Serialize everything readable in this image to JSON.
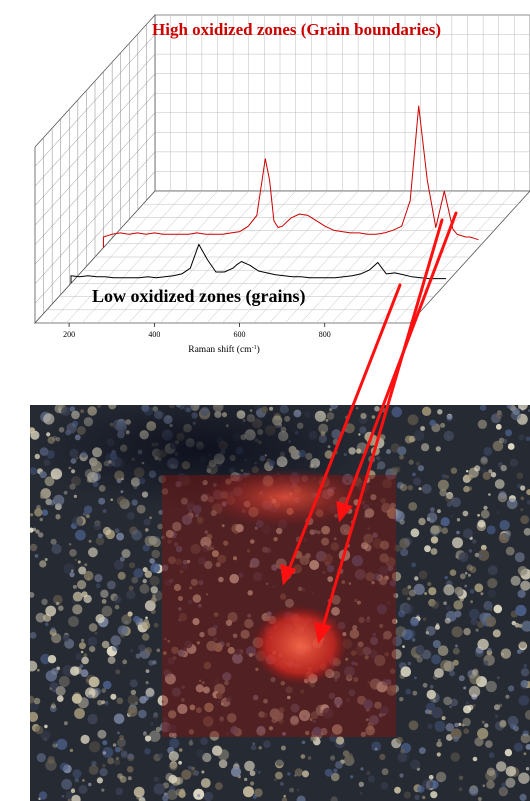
{
  "chart_data": {
    "type": "line",
    "view": "3d-waterfall",
    "xlabel": "Raman shift (cm",
    "xlabel_superscript": "-1",
    "xlabel_suffix": ")",
    "x_ticks": [
      "200",
      "400",
      "600",
      "800"
    ],
    "xlim": [
      120,
      1000
    ],
    "grid": true,
    "series": [
      {
        "name": "High oxidized zones (Grain boundaries)",
        "color": "#cc0000",
        "x": [
          120,
          140,
          160,
          180,
          200,
          220,
          240,
          260,
          280,
          300,
          320,
          340,
          360,
          380,
          400,
          420,
          440,
          460,
          480,
          500,
          510,
          520,
          530,
          540,
          550,
          560,
          580,
          600,
          620,
          640,
          660,
          680,
          700,
          720,
          740,
          760,
          780,
          800,
          820,
          840,
          860,
          880,
          900,
          920,
          940,
          950,
          960,
          970,
          980,
          990,
          1000
        ],
        "y": [
          0.8,
          1.0,
          1.1,
          1.0,
          1.1,
          1.0,
          1.1,
          1.0,
          1.0,
          1.0,
          1.0,
          1.1,
          1.0,
          1.0,
          1.0,
          1.1,
          1.2,
          1.6,
          2.4,
          6.6,
          5.0,
          2.0,
          1.5,
          1.6,
          1.9,
          2.2,
          2.5,
          2.4,
          2.0,
          1.6,
          1.3,
          1.2,
          1.1,
          1.1,
          1.0,
          1.0,
          1.1,
          1.3,
          1.6,
          3.5,
          10.5,
          5.0,
          1.5,
          4.2,
          1.4,
          1.0,
          0.9,
          0.8,
          0.8,
          0.7,
          0.6
        ]
      },
      {
        "name": "Low oxidized zones (grains)",
        "color": "#000000",
        "x": [
          120,
          140,
          160,
          180,
          200,
          220,
          240,
          260,
          280,
          300,
          320,
          340,
          360,
          380,
          400,
          420,
          440,
          460,
          480,
          500,
          510,
          520,
          530,
          540,
          550,
          560,
          580,
          600,
          620,
          640,
          660,
          680,
          700,
          720,
          740,
          760,
          780,
          800,
          820,
          840,
          860,
          880,
          900,
          920,
          940,
          960,
          980,
          1000
        ],
        "y": [
          0.8,
          0.7,
          0.8,
          0.7,
          0.7,
          0.6,
          0.6,
          0.6,
          0.6,
          0.7,
          0.6,
          0.7,
          0.8,
          1.0,
          1.6,
          4.1,
          2.5,
          1.2,
          1.2,
          1.6,
          2.0,
          2.3,
          2.1,
          1.9,
          1.6,
          1.3,
          1.1,
          0.9,
          0.8,
          0.7,
          0.7,
          0.6,
          0.6,
          0.6,
          0.6,
          0.7,
          0.8,
          1.0,
          1.4,
          2.2,
          1.0,
          1.1,
          0.9,
          0.7,
          0.6,
          0.5,
          0.5,
          0.5
        ]
      }
    ]
  }
}
